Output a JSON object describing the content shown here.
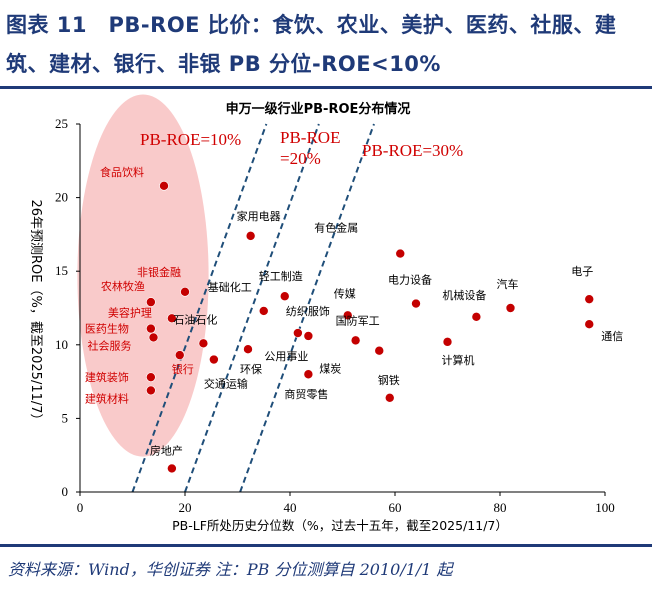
{
  "figure": {
    "title": "图表 11　PB-ROE 比价：食饮、农业、美护、医药、社服、建筑、建材、银行、非银 PB 分位-ROE<10%",
    "source": "资料来源：Wind，华创证券 注：PB 分位测算自 2010/1/1 起"
  },
  "colors": {
    "accent": "#1f3a78",
    "point": "#c40000",
    "ellipse": "#f7b8b8",
    "dashed": "#1f4e79",
    "annotation": "#d00000"
  },
  "chart_data": {
    "type": "scatter",
    "title": "申万一级行业PB-ROE分布情况",
    "xlabel": "PB-LF所处历史分位数（%，过去十五年，截至2025/11/7）",
    "ylabel": "26年预测ROE（%，截至2025/11/7）",
    "xlim": [
      0,
      100
    ],
    "ylim": [
      0,
      25
    ],
    "xticks": [
      0,
      20,
      40,
      60,
      80,
      100
    ],
    "yticks": [
      0,
      5,
      10,
      15,
      20,
      25
    ],
    "grid": false,
    "highlight_region": {
      "label": "PB-ROE<10% highlighted",
      "center": [
        12,
        14.7
      ],
      "radius": [
        12.5,
        12.3
      ]
    },
    "guide_lines": [
      {
        "label": "PB-ROE=10%",
        "from": [
          10,
          0
        ],
        "to": [
          35.5,
          25
        ]
      },
      {
        "label": "PB-ROE=20%",
        "from": [
          20,
          0
        ],
        "to": [
          45.5,
          25
        ]
      },
      {
        "label": "PB-ROE=30%",
        "from": [
          30.5,
          0
        ],
        "to": [
          56,
          25
        ]
      }
    ],
    "points": [
      {
        "name": "食品饮料",
        "x": 16,
        "y": 20.8,
        "highlight": true
      },
      {
        "name": "非银金融",
        "x": 20,
        "y": 13.6,
        "highlight": true
      },
      {
        "name": "农林牧渔",
        "x": 13.5,
        "y": 12.9,
        "highlight": true
      },
      {
        "name": "美容护理",
        "x": 17.5,
        "y": 11.8,
        "highlight": true
      },
      {
        "name": "医药生物",
        "x": 13.5,
        "y": 11.1,
        "highlight": true
      },
      {
        "name": "社会服务",
        "x": 14,
        "y": 10.5,
        "highlight": true
      },
      {
        "name": "银行",
        "x": 19,
        "y": 9.3,
        "highlight": true
      },
      {
        "name": "建筑装饰",
        "x": 13.5,
        "y": 7.8,
        "highlight": true
      },
      {
        "name": "建筑材料",
        "x": 13.5,
        "y": 6.9,
        "highlight": true
      },
      {
        "name": "家用电器",
        "x": 32.5,
        "y": 17.4,
        "highlight": false
      },
      {
        "name": "有色金属",
        "x": 61,
        "y": 16.2,
        "highlight": false
      },
      {
        "name": "汽车",
        "x": 82,
        "y": 12.5,
        "highlight": false
      },
      {
        "name": "电子",
        "x": 97,
        "y": 13.1,
        "highlight": false
      },
      {
        "name": "通信",
        "x": 97,
        "y": 11.4,
        "highlight": false
      },
      {
        "name": "基础化工",
        "x": 35,
        "y": 12.3,
        "highlight": false
      },
      {
        "name": "轻工制造",
        "x": 39,
        "y": 13.3,
        "highlight": false
      },
      {
        "name": "石油石化",
        "x": 23.5,
        "y": 10.1,
        "highlight": false
      },
      {
        "name": "传媒",
        "x": 51,
        "y": 12.0,
        "highlight": false
      },
      {
        "name": "电力设备",
        "x": 64,
        "y": 12.8,
        "highlight": false
      },
      {
        "name": "机械设备",
        "x": 75.5,
        "y": 11.9,
        "highlight": false
      },
      {
        "name": "纺织服饰",
        "x": 41.5,
        "y": 10.8,
        "highlight": false
      },
      {
        "name": "国防军工",
        "x": 52.5,
        "y": 10.3,
        "highlight": false
      },
      {
        "name": "计算机",
        "x": 70,
        "y": 10.2,
        "highlight": false
      },
      {
        "name": "环保",
        "x": 32,
        "y": 9.7,
        "highlight": false
      },
      {
        "name": "公用事业",
        "x": 43.5,
        "y": 10.6,
        "highlight": false
      },
      {
        "name": "煤炭",
        "x": 57,
        "y": 9.6,
        "highlight": false
      },
      {
        "name": "交通运输",
        "x": 25.5,
        "y": 9.0,
        "highlight": false
      },
      {
        "name": "商贸零售",
        "x": 43.5,
        "y": 8.0,
        "highlight": false
      },
      {
        "name": "钢铁",
        "x": 59,
        "y": 6.4,
        "highlight": false
      },
      {
        "name": "房地产",
        "x": 17.5,
        "y": 1.6,
        "highlight": false
      }
    ]
  }
}
